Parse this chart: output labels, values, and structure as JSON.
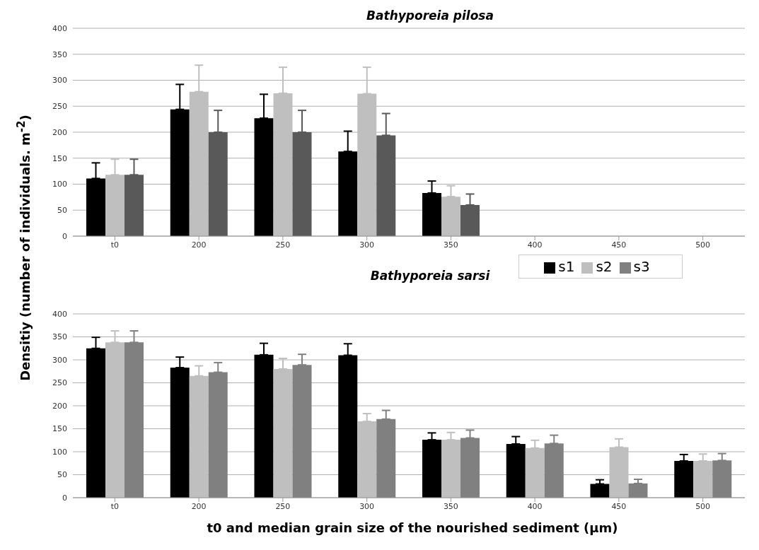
{
  "chart_data": [
    {
      "type": "bar",
      "title": "Bathyporeia pilosa",
      "ylabel": "Densitiy (number of individuals. m$^{-2}$)",
      "categories": [
        "t0",
        "200",
        "250",
        "300",
        "350",
        "400",
        "450",
        "500"
      ],
      "ylim": [
        0,
        400
      ],
      "yticks": [
        0,
        50,
        100,
        150,
        200,
        250,
        300,
        350,
        400
      ],
      "grid": "y",
      "legend": false,
      "series": [
        {
          "color": "#000000",
          "values": [
            111,
            244,
            227,
            163,
            83,
            0,
            0,
            0
          ],
          "errors": [
            [
              111,
              141
            ],
            [
              244,
              292
            ],
            [
              227,
              273
            ],
            [
              163,
              202
            ],
            [
              83,
              106
            ],
            [
              0,
              0
            ],
            [
              0,
              0
            ],
            [
              0,
              0
            ]
          ]
        },
        {
          "color": "#bfbfbf",
          "values": [
            118,
            278,
            275,
            274,
            76,
            0,
            0,
            0
          ],
          "errors": [
            [
              118,
              148
            ],
            [
              278,
              329
            ],
            [
              275,
              325
            ],
            [
              274,
              325
            ],
            [
              76,
              97
            ],
            [
              0,
              0
            ],
            [
              0,
              0
            ],
            [
              0,
              0
            ]
          ]
        },
        {
          "color": "#595959",
          "values": [
            118,
            200,
            200,
            194,
            60,
            0,
            0,
            0
          ],
          "errors": [
            [
              118,
              148
            ],
            [
              200,
              242
            ],
            [
              200,
              242
            ],
            [
              194,
              236
            ],
            [
              60,
              81
            ],
            [
              0,
              0
            ],
            [
              0,
              0
            ],
            [
              0,
              0
            ]
          ]
        }
      ]
    },
    {
      "type": "bar",
      "title": "Bathyporeia sarsi",
      "xlabel": "t0 and median grain size of the nourished sediment (µm)",
      "categories": [
        "t0",
        "200",
        "250",
        "300",
        "350",
        "400",
        "450",
        "500"
      ],
      "ylim": [
        0,
        400
      ],
      "yticks": [
        0,
        50,
        100,
        150,
        200,
        250,
        300,
        350,
        400
      ],
      "grid": "y",
      "legend": "top right",
      "series": [
        {
          "name": "s1",
          "color": "#000000",
          "values": [
            325,
            283,
            311,
            310,
            126,
            117,
            30,
            80
          ],
          "errors": [
            [
              325,
              349
            ],
            [
              283,
              306
            ],
            [
              311,
              336
            ],
            [
              310,
              335
            ],
            [
              126,
              141
            ],
            [
              117,
              133
            ],
            [
              30,
              39
            ],
            [
              80,
              94
            ]
          ]
        },
        {
          "name": "s2",
          "color": "#bfbfbf",
          "values": [
            338,
            265,
            280,
            166,
            126,
            108,
            110,
            80
          ],
          "errors": [
            [
              338,
              363
            ],
            [
              265,
              287
            ],
            [
              280,
              303
            ],
            [
              166,
              183
            ],
            [
              126,
              142
            ],
            [
              108,
              125
            ],
            [
              110,
              128
            ],
            [
              80,
              95
            ]
          ]
        },
        {
          "name": "s3",
          "color": "#808080",
          "values": [
            338,
            273,
            289,
            171,
            130,
            118,
            31,
            81
          ],
          "errors": [
            [
              338,
              363
            ],
            [
              273,
              294
            ],
            [
              289,
              312
            ],
            [
              171,
              190
            ],
            [
              130,
              147
            ],
            [
              118,
              136
            ],
            [
              31,
              40
            ],
            [
              81,
              96
            ]
          ]
        }
      ]
    }
  ]
}
